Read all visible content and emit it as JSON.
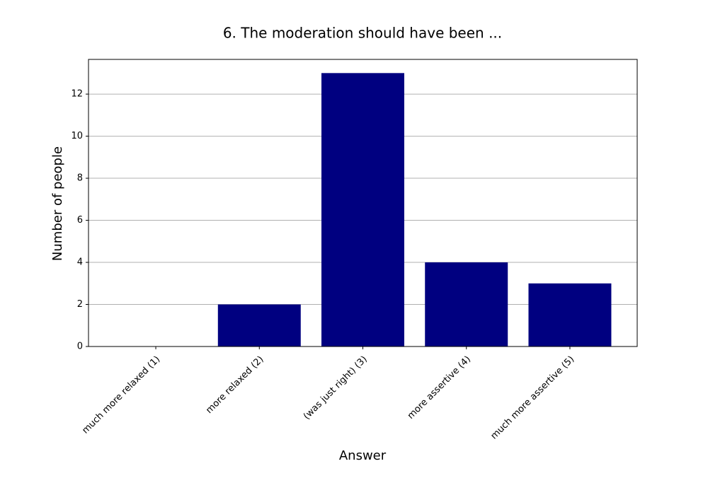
{
  "chart_data": {
    "type": "bar",
    "title": "6. The moderation should have been ...",
    "x_label": "Answer",
    "y_label": "Number of people",
    "categories": [
      "much more relaxed (1)",
      "more relaxed (2)",
      "(was just right) (3)",
      "more assertive (4)",
      "much more assertive (5)"
    ],
    "values": [
      0,
      2,
      13,
      4,
      3
    ],
    "color": "#000080",
    "ylim": [
      0,
      13.65
    ],
    "yticks": [
      0,
      2,
      4,
      6,
      8,
      10,
      12
    ],
    "grid": true
  }
}
